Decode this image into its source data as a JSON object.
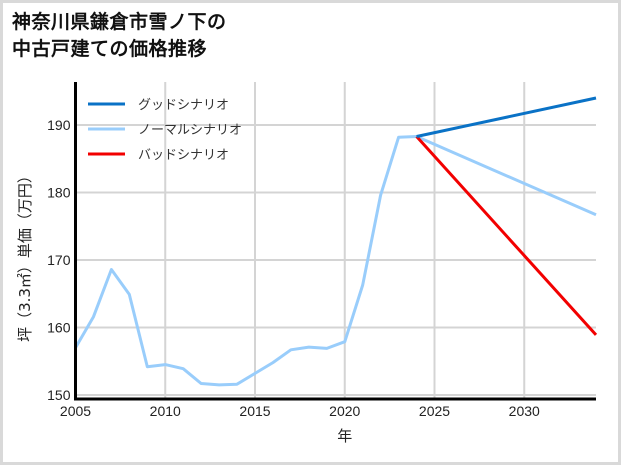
{
  "title": {
    "line1": "神奈川県鎌倉市雪ノ下の",
    "line2": "中古戸建ての価格推移"
  },
  "chart_data": {
    "type": "line",
    "title": "神奈川県鎌倉市雪ノ下の中古戸建ての価格推移",
    "xlabel": "年",
    "ylabel": "坪（3.3㎡）単価（万円）",
    "xlim": [
      2005,
      2034
    ],
    "ylim": [
      149.5,
      196
    ],
    "xticks": [
      2005,
      2010,
      2015,
      2020,
      2025,
      2030
    ],
    "yticks": [
      150,
      160,
      170,
      180,
      190
    ],
    "grid": true,
    "legend_position": "upper left",
    "series": [
      {
        "name": "グッドシナリオ",
        "color": "#0a72c6",
        "x": [
          2024,
          2034
        ],
        "values": [
          188.3,
          194.0
        ]
      },
      {
        "name": "ノーマルシナリオ",
        "color": "#99cdfb",
        "x": [
          2005,
          2006,
          2007,
          2008,
          2009,
          2010,
          2011,
          2012,
          2013,
          2014,
          2015,
          2016,
          2017,
          2018,
          2019,
          2020,
          2021,
          2022,
          2023,
          2024,
          2034
        ],
        "values": [
          157.0,
          161.6,
          168.6,
          164.9,
          154.2,
          154.5,
          153.9,
          151.7,
          151.5,
          151.6,
          153.2,
          154.8,
          156.7,
          157.1,
          156.9,
          157.9,
          166.3,
          179.6,
          188.2,
          188.3,
          176.7
        ]
      },
      {
        "name": "バッドシナリオ",
        "color": "#f20000",
        "x": [
          2024,
          2034
        ],
        "values": [
          188.3,
          158.9
        ]
      }
    ]
  }
}
